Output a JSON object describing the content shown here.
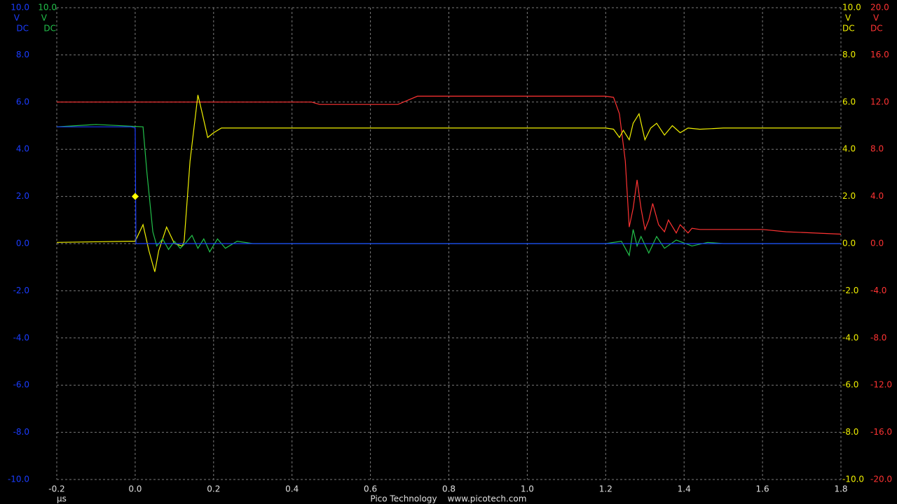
{
  "chart_data": {
    "type": "line",
    "x_label": "µs",
    "footer": [
      "Pico Technology",
      "www.picotech.com"
    ],
    "xlim": [
      -0.2,
      1.8
    ],
    "xticks": [
      -0.2,
      {
        "value": 0,
        "label": "0.0"
      },
      0.2,
      0.4,
      0.6,
      0.8,
      {
        "value": 1,
        "label": "1.0"
      },
      1.2,
      1.4,
      1.6,
      1.8
    ],
    "grid": true,
    "axes": [
      {
        "color": "#1a3cff",
        "unit": "V",
        "coupling": "DC",
        "ylim": [
          -10,
          10
        ],
        "yticks": [
          {
            "value": 10,
            "label": "10.0"
          },
          {
            "value": 8,
            "label": "8.0"
          },
          {
            "value": 6,
            "label": "6.0"
          },
          {
            "value": 4,
            "label": "4.0"
          },
          {
            "value": 2,
            "label": "2.0"
          },
          {
            "value": 0,
            "label": "0.0"
          },
          {
            "value": -2,
            "label": "-2.0"
          },
          {
            "value": -4,
            "label": "-4.0"
          },
          {
            "value": -6,
            "label": "-6.0"
          },
          {
            "value": -8,
            "label": "-8.0"
          },
          {
            "value": -10,
            "label": "-10.0"
          }
        ]
      },
      {
        "color": "#22c04a",
        "unit": "V",
        "coupling": "DC",
        "ylim": [
          -10,
          10
        ],
        "yticks": [
          {
            "value": 10,
            "label": "10.0"
          }
        ]
      },
      {
        "color": "#f0f000",
        "unit": "V",
        "coupling": "DC",
        "ylim": [
          -10,
          10
        ],
        "yticks": [
          {
            "value": 10,
            "label": "10.0"
          },
          {
            "value": 8,
            "label": "8.0"
          },
          {
            "value": 6,
            "label": "6.0"
          },
          {
            "value": 4,
            "label": "4.0"
          },
          {
            "value": 2,
            "label": "2.0"
          },
          {
            "value": 0,
            "label": "0.0"
          },
          {
            "value": -2,
            "label": "-2.0"
          },
          {
            "value": -4,
            "label": "-4.0"
          },
          {
            "value": -6,
            "label": "-6.0"
          },
          {
            "value": -8,
            "label": "-8.0"
          },
          {
            "value": -10,
            "label": "-10.0"
          }
        ]
      },
      {
        "color": "#ff3333",
        "unit": "V",
        "coupling": "DC",
        "ylim": [
          -20,
          20
        ],
        "yticks": [
          {
            "value": 20,
            "label": "20.0"
          },
          {
            "value": 16,
            "label": "16.0"
          },
          {
            "value": 12,
            "label": "12.0"
          },
          {
            "value": 8,
            "label": "8.0"
          },
          {
            "value": 4,
            "label": "4.0"
          },
          {
            "value": 0,
            "label": "0.0"
          },
          {
            "value": -4,
            "label": "-4.0"
          },
          {
            "value": -8,
            "label": "-8.0"
          },
          {
            "value": -12,
            "label": "-12.0"
          },
          {
            "value": -16,
            "label": "-16.0"
          },
          {
            "value": -20,
            "label": "-20.0"
          }
        ]
      }
    ],
    "series": [
      {
        "color": "#ff3333",
        "axis": 3,
        "x": [
          -0.2,
          0.45,
          0.47,
          0.67,
          0.72,
          1.2,
          1.22,
          1.235,
          1.25,
          1.26,
          1.27,
          1.28,
          1.29,
          1.3,
          1.31,
          1.32,
          1.335,
          1.35,
          1.36,
          1.38,
          1.39,
          1.41,
          1.42,
          1.44,
          1.6,
          1.66,
          1.8
        ],
        "values": [
          12,
          12,
          11.8,
          11.8,
          12.5,
          12.5,
          12.4,
          11,
          7,
          1.4,
          3,
          5.4,
          3,
          1.2,
          2,
          3.4,
          1.6,
          1,
          2,
          0.9,
          1.6,
          0.9,
          1.3,
          1.2,
          1.2,
          1,
          0.8
        ]
      },
      {
        "color": "#f0f000",
        "axis": 2,
        "x": [
          -0.2,
          -0.01,
          0,
          0.02,
          0.035,
          0.05,
          0.06,
          0.08,
          0.1,
          0.12,
          0.125,
          0.14,
          0.16,
          0.17,
          0.185,
          0.2,
          0.22,
          0.5,
          0.8,
          1.2,
          1.22,
          1.235,
          1.245,
          1.26,
          1.27,
          1.285,
          1.3,
          1.315,
          1.33,
          1.35,
          1.37,
          1.39,
          1.41,
          1.44,
          1.5,
          1.8
        ],
        "values": [
          0.05,
          0.1,
          0.1,
          0.8,
          -0.3,
          -1.2,
          -0.3,
          0.7,
          0,
          -0.1,
          0.1,
          3.5,
          6.3,
          5.6,
          4.5,
          4.7,
          4.9,
          4.9,
          4.9,
          4.9,
          4.85,
          4.5,
          4.8,
          4.4,
          5.1,
          5.5,
          4.4,
          4.9,
          5.1,
          4.6,
          5,
          4.7,
          4.9,
          4.85,
          4.9,
          4.9
        ]
      },
      {
        "color": "#22c04a",
        "axis": 1,
        "x": [
          -0.2,
          -0.1,
          0.02,
          0.03,
          0.045,
          0.055,
          0.07,
          0.085,
          0.1,
          0.115,
          0.13,
          0.145,
          0.16,
          0.175,
          0.19,
          0.21,
          0.23,
          0.26,
          0.3,
          1.2,
          1.24,
          1.26,
          1.27,
          1.28,
          1.29,
          1.31,
          1.33,
          1.35,
          1.38,
          1.42,
          1.46,
          1.5,
          1.8
        ],
        "values": [
          4.95,
          5.05,
          4.95,
          3,
          0.5,
          -0.1,
          0.2,
          -0.25,
          0.1,
          -0.2,
          0.05,
          0.35,
          -0.2,
          0.2,
          -0.35,
          0.2,
          -0.2,
          0.1,
          0,
          0,
          0.1,
          -0.5,
          0.6,
          -0.1,
          0.3,
          -0.4,
          0.3,
          -0.2,
          0.15,
          -0.1,
          0.05,
          0,
          0
        ]
      },
      {
        "color": "#1a3cff",
        "axis": 0,
        "x": [
          -0.2,
          -0.01,
          0,
          0.002,
          1.8
        ],
        "values": [
          4.95,
          4.95,
          4.9,
          0,
          0
        ]
      }
    ],
    "trigger": {
      "color": "#ffff00",
      "x": 0,
      "y": 2
    }
  }
}
